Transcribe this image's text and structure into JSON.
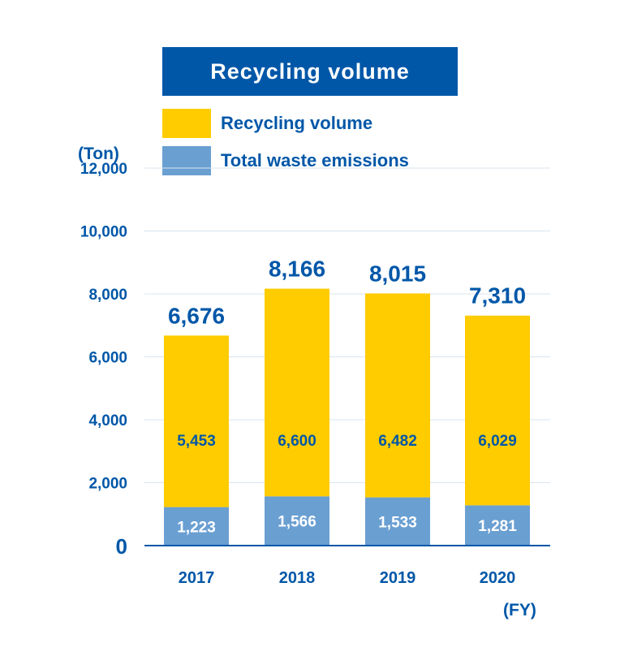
{
  "chart_data": {
    "type": "bar",
    "stacked": true,
    "title": "Recycling volume",
    "ylabel": "(Ton)",
    "xlabel": "(FY)",
    "categories": [
      "2017",
      "2018",
      "2019",
      "2020"
    ],
    "series": [
      {
        "name": "Total waste emissions",
        "color": "#6a9fd2",
        "values": [
          1223,
          1566,
          1533,
          1281
        ],
        "labels": [
          "1,223",
          "1,566",
          "1,533",
          "1,281"
        ]
      },
      {
        "name": "Recycling volume",
        "color": "#ffcc00",
        "values": [
          5453,
          6600,
          6482,
          6029
        ],
        "labels": [
          "5,453",
          "6,600",
          "6,482",
          "6,029"
        ]
      }
    ],
    "totals": [
      "6,676",
      "8,166",
      "8,015",
      "7,310"
    ],
    "yticks": [
      0,
      2000,
      4000,
      6000,
      8000,
      10000,
      12000
    ],
    "ytick_labels": [
      "0",
      "2,000",
      "4,000",
      "6,000",
      "8,000",
      "10,000",
      "12,000"
    ],
    "ylim": [
      0,
      12000
    ],
    "grid": true,
    "legend_position": "top"
  },
  "legend": [
    {
      "label": "Recycling volume",
      "color": "#ffcc00"
    },
    {
      "label": "Total waste emissions",
      "color": "#6a9fd2"
    }
  ],
  "colors": {
    "accent": "#0057a8",
    "grid": "#d9e4ef",
    "axis": "#0057a8"
  }
}
